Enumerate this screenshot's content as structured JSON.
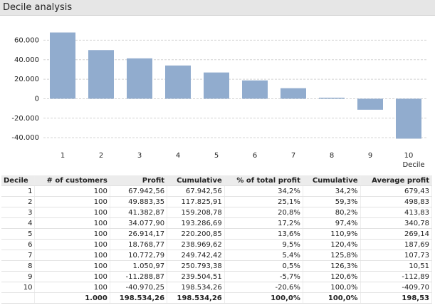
{
  "title": "Decile analysis",
  "chart_data": {
    "type": "bar",
    "x_label": "Decile",
    "categories": [
      "1",
      "2",
      "3",
      "4",
      "5",
      "6",
      "7",
      "8",
      "9",
      "10"
    ],
    "values": [
      67942.56,
      49883.35,
      41382.87,
      34077.9,
      26914.17,
      18768.77,
      10772.79,
      1050.97,
      -11288.87,
      -40970.25
    ],
    "color": "#91acce",
    "ylim": [
      -45000,
      72000
    ],
    "yticks": [
      {
        "value": -40000,
        "label": "-40.000"
      },
      {
        "value": -20000,
        "label": "-20.000"
      },
      0,
      {
        "value": 20000,
        "label": "20.000"
      },
      {
        "value": 40000,
        "label": "40.000"
      },
      {
        "value": 60000,
        "label": "60.000"
      }
    ],
    "grid": true
  },
  "table": {
    "headers": [
      "Decile",
      "# of customers",
      "Profit",
      "Cumulative",
      "% of total profit",
      "Cumulative",
      "Average profit"
    ],
    "rows": [
      [
        "1",
        "100",
        "67.942,56",
        "67.942,56",
        "34,2%",
        "34,2%",
        "679,43"
      ],
      [
        "2",
        "100",
        "49.883,35",
        "117.825,91",
        "25,1%",
        "59,3%",
        "498,83"
      ],
      [
        "3",
        "100",
        "41.382,87",
        "159.208,78",
        "20,8%",
        "80,2%",
        "413,83"
      ],
      [
        "4",
        "100",
        "34.077,90",
        "193.286,69",
        "17,2%",
        "97,4%",
        "340,78"
      ],
      [
        "5",
        "100",
        "26.914,17",
        "220.200,85",
        "13,6%",
        "110,9%",
        "269,14"
      ],
      [
        "6",
        "100",
        "18.768,77",
        "238.969,62",
        "9,5%",
        "120,4%",
        "187,69"
      ],
      [
        "7",
        "100",
        "10.772,79",
        "249.742,42",
        "5,4%",
        "125,8%",
        "107,73"
      ],
      [
        "8",
        "100",
        "1.050,97",
        "250.793,38",
        "0,5%",
        "126,3%",
        "10,51"
      ],
      [
        "9",
        "100",
        "-11.288,87",
        "239.504,51",
        "-5,7%",
        "120,6%",
        "-112,89"
      ],
      [
        "10",
        "100",
        "-40.970,25",
        "198.534,26",
        "-20,6%",
        "100,0%",
        "-409,70"
      ]
    ],
    "totals": [
      "1.000",
      "198.534,26",
      "198.534,26",
      "100,0%",
      "100,0%",
      "198,53"
    ]
  }
}
